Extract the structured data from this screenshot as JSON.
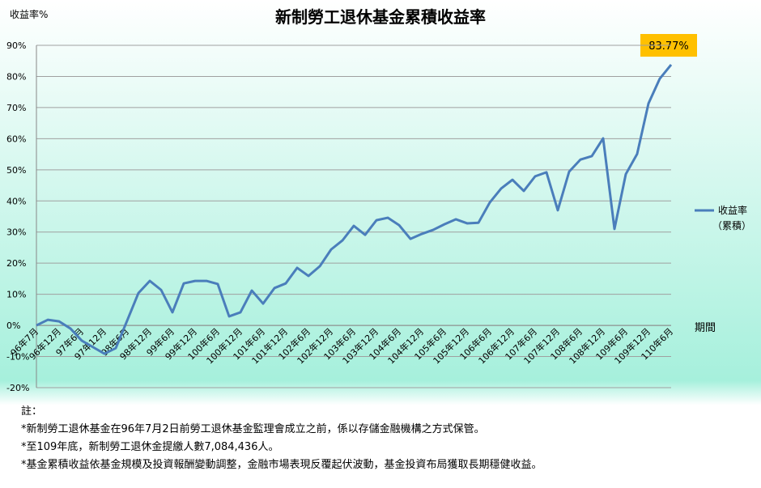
{
  "chart_data": {
    "type": "line",
    "title": "新制勞工退休基金累積收益率",
    "y_label": "收益率%",
    "x_label": "期間",
    "categories": [
      "96年7月",
      null,
      "96年12月",
      null,
      "97年6月",
      null,
      "97年12月",
      null,
      "98年6月",
      null,
      "98年12月",
      null,
      "99年6月",
      null,
      "99年12月",
      null,
      "100年6月",
      null,
      "100年12月",
      null,
      "101年6月",
      null,
      "101年12月",
      null,
      "102年6月",
      null,
      "102年12月",
      null,
      "103年6月",
      null,
      "103年12月",
      null,
      "104年6月",
      null,
      "104年12月",
      null,
      "105年6月",
      null,
      "105年12月",
      null,
      "106年6月",
      null,
      "106年12月",
      null,
      "107年6月",
      null,
      "107年12月",
      null,
      "108年6月",
      null,
      "108年12月",
      null,
      "109年6月",
      null,
      "109年12月",
      null,
      "110年6月"
    ],
    "series": [
      {
        "name": "收益率",
        "color": "#4a7ebb",
        "values": [
          0,
          1.8,
          1.3,
          -1.0,
          -4.9,
          -7.0,
          -9.1,
          -7.3,
          1.5,
          10.4,
          14.3,
          11.4,
          4.2,
          13.5,
          14.3,
          14.3,
          13.3,
          2.9,
          4.2,
          11.2,
          7.0,
          12.0,
          13.5,
          18.5,
          15.9,
          19.0,
          24.4,
          27.3,
          32.0,
          29.1,
          33.8,
          34.6,
          32.2,
          27.8,
          29.4,
          30.7,
          32.5,
          34.1,
          32.8,
          33.0,
          39.5,
          44.0,
          46.8,
          43.2,
          47.9,
          49.2,
          37.0,
          49.4,
          53.3,
          54.4,
          60.1,
          31.0,
          48.6,
          55.1,
          71.3,
          79.3,
          83.77
        ]
      }
    ],
    "legend_note": "（累積）",
    "annotation": "83.77%",
    "ylim": [
      -20,
      90
    ],
    "yticks": [
      {
        "value": -20,
        "label": "-20%"
      },
      {
        "value": -10,
        "label": "-10%"
      },
      {
        "value": 0,
        "label": "0%"
      },
      {
        "value": 10,
        "label": "10%"
      },
      {
        "value": 20,
        "label": "20%"
      },
      {
        "value": 30,
        "label": "30%"
      },
      {
        "value": 40,
        "label": "40%"
      },
      {
        "value": 50,
        "label": "50%"
      },
      {
        "value": 60,
        "label": "60%"
      },
      {
        "value": 70,
        "label": "70%"
      },
      {
        "value": 80,
        "label": "80%"
      },
      {
        "value": 90,
        "label": "90%"
      }
    ],
    "grid": true,
    "notes": [
      "註：",
      "*新制勞工退休基金在96年7月2日前勞工退休基金監理會成立之前，係以存儲金融機構之方式保管。",
      "*至109年底，新制勞工退休金提繳人數7,084,436人。",
      "*基金累積收益依基金規模及投資報酬變動調整，金融市場表現反覆起伏波動，基金投資布局獲取長期穩健收益。"
    ]
  }
}
